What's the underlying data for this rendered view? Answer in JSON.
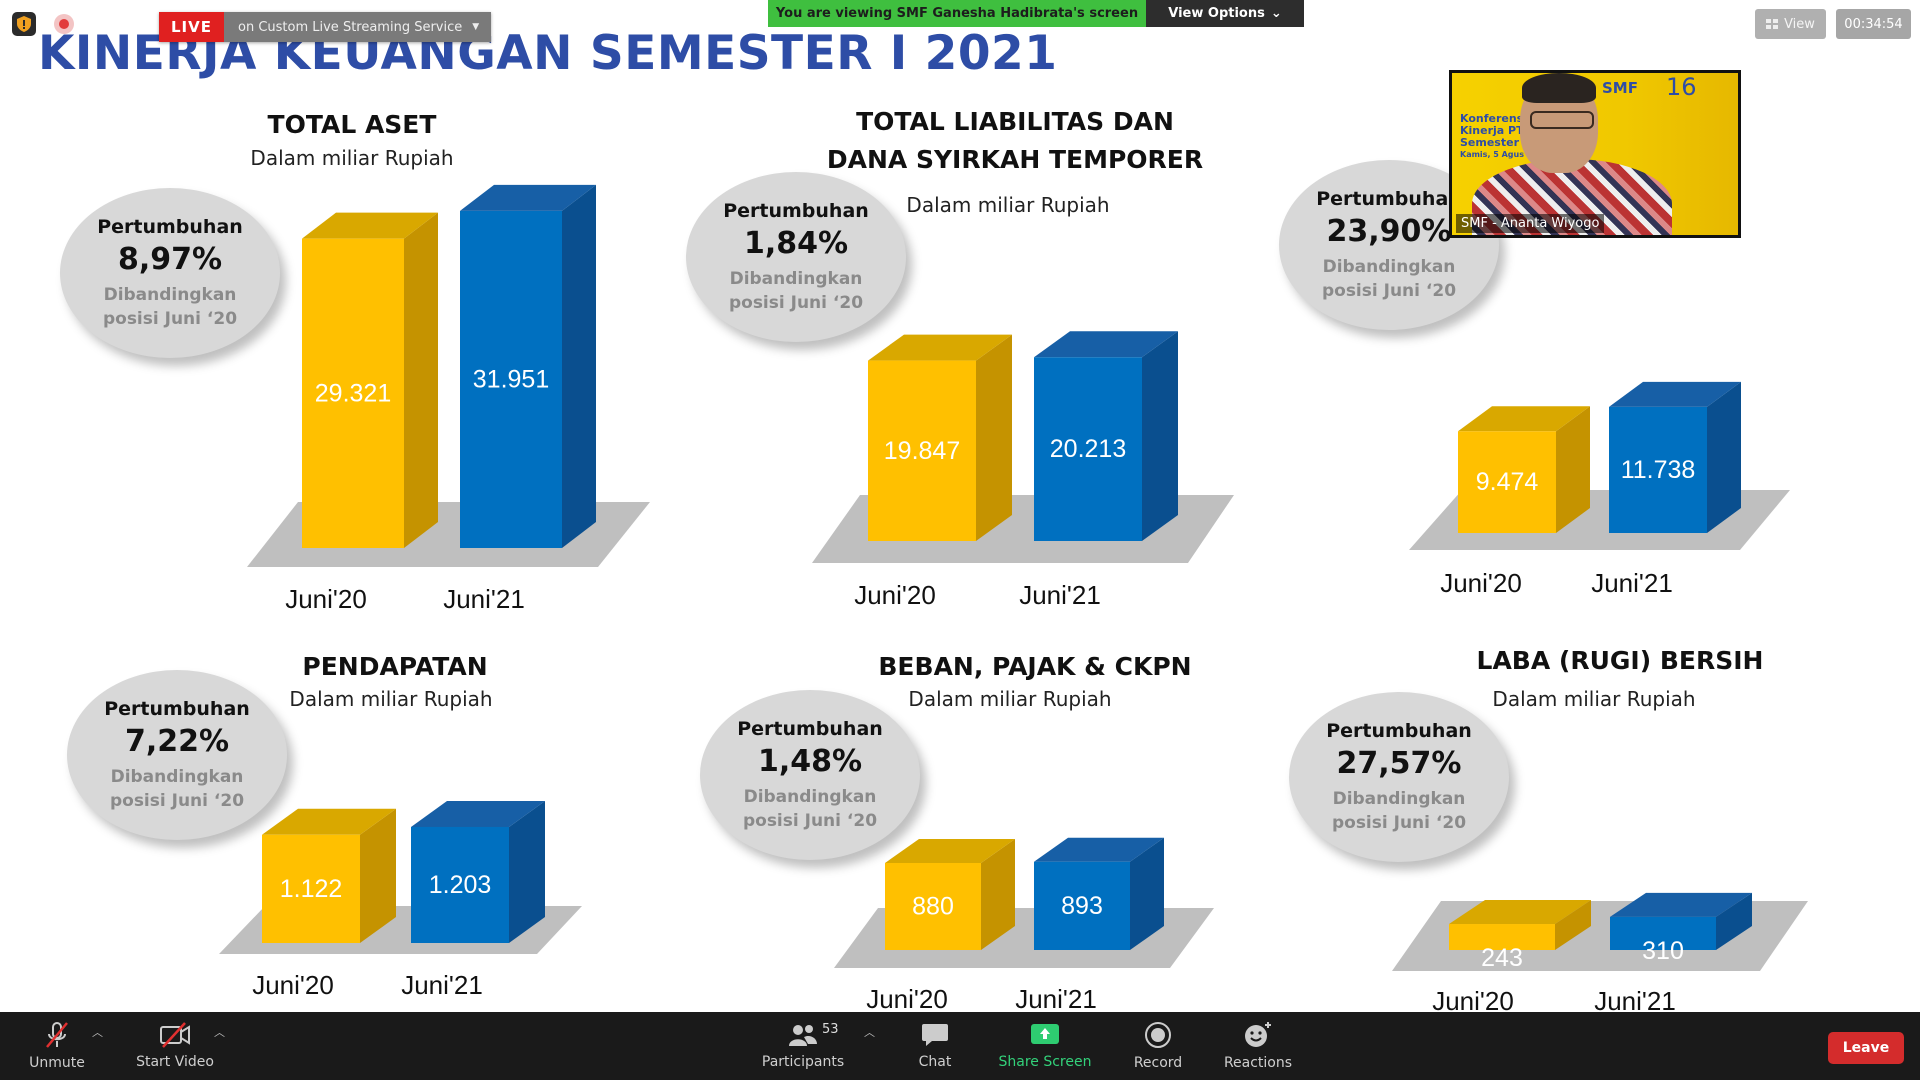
{
  "meeting": {
    "live_badge": "LIVE",
    "live_service": "on Custom Live Streaming Service",
    "viewing_banner": "You are viewing SMF Ganesha Hadibrata's screen",
    "view_options_label": "View Options",
    "view_label": "View",
    "elapsed_time": "00:34:54",
    "video_participant_name": "SMF - Ananta Wiyogo",
    "video_slide_text_1": "Konferens",
    "video_slide_text_2": "Kinerja PT",
    "video_slide_text_3": "Semester",
    "video_slide_text_4": "Kamis, 5 Agus",
    "video_logo": "SMF",
    "video_anniversary": "16"
  },
  "toolbar": {
    "unmute": "Unmute",
    "start_video": "Start Video",
    "participants": "Participants",
    "participants_count": "53",
    "chat": "Chat",
    "share_screen": "Share Screen",
    "record": "Record",
    "reactions": "Reactions",
    "leave": "Leave"
  },
  "slide": {
    "title": "KINERJA KEUANGAN SEMESTER I 2021",
    "growth_label": "Pertumbuhan",
    "compare_line1": "Dibandingkan",
    "compare_line2": "posisi Juni ‘20",
    "unit_label": "Dalam miliar Rupiah",
    "x_labels": [
      "Juni'20",
      "Juni'21"
    ],
    "colors": {
      "juni20": "#ffc000",
      "juni21": "#0070c0"
    }
  },
  "chart_data": [
    {
      "type": "bar",
      "title": "TOTAL ASET",
      "subtitle": "Dalam miliar Rupiah",
      "growth": "8,97%",
      "categories": [
        "Juni'20",
        "Juni'21"
      ],
      "values": [
        29321,
        31951
      ],
      "value_labels": [
        "29.321",
        "31.951"
      ]
    },
    {
      "type": "bar",
      "title": "TOTAL LIABILITAS DAN DANA SYIRKAH TEMPORER",
      "title_line1": "TOTAL LIABILITAS DAN",
      "title_line2": "DANA SYIRKAH TEMPORER",
      "subtitle": "Dalam miliar Rupiah",
      "growth": "1,84%",
      "categories": [
        "Juni'20",
        "Juni'21"
      ],
      "values": [
        19847,
        20213
      ],
      "value_labels": [
        "19.847",
        "20.213"
      ]
    },
    {
      "type": "bar",
      "title": "",
      "subtitle": "",
      "growth": "23,90%",
      "categories": [
        "Juni'20",
        "Juni'21"
      ],
      "values": [
        9474,
        11738
      ],
      "value_labels": [
        "9.474",
        "11.738"
      ]
    },
    {
      "type": "bar",
      "title": "PENDAPATAN",
      "subtitle": "Dalam miliar Rupiah",
      "growth": "7,22%",
      "categories": [
        "Juni'20",
        "Juni'21"
      ],
      "values": [
        1122,
        1203
      ],
      "value_labels": [
        "1.122",
        "1.203"
      ]
    },
    {
      "type": "bar",
      "title": "BEBAN, PAJAK & CKPN",
      "subtitle": "Dalam miliar Rupiah",
      "growth": "1,48%",
      "categories": [
        "Juni'20",
        "Juni'21"
      ],
      "values": [
        880,
        893
      ],
      "value_labels": [
        "880",
        "893"
      ]
    },
    {
      "type": "bar",
      "title": "LABA (RUGI) BERSIH",
      "subtitle": "Dalam miliar Rupiah",
      "growth": "27,57%",
      "categories": [
        "Juni'20",
        "Juni'21"
      ],
      "values": [
        243,
        310
      ],
      "value_labels": [
        "243",
        "310"
      ]
    }
  ]
}
